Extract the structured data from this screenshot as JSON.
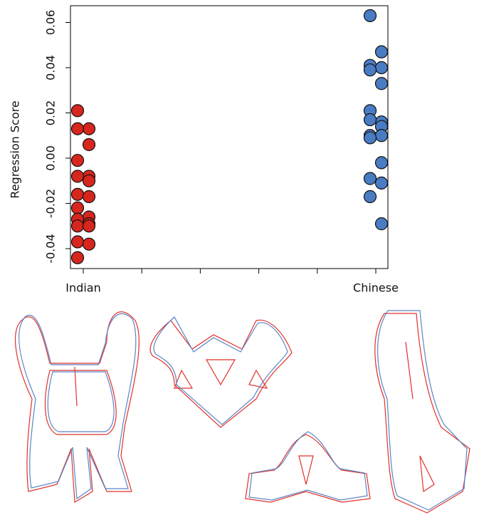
{
  "chart_data": {
    "type": "scatter",
    "y_label": "Regression Score",
    "categories": [
      "Indian",
      null,
      null,
      null,
      null,
      "Chinese"
    ],
    "series": [
      {
        "category": 0,
        "color": "#d7261e",
        "values": [
          0.021,
          0.013,
          0.013,
          0.006,
          -0.001,
          -0.008,
          -0.008,
          -0.01,
          -0.016,
          -0.017,
          -0.022,
          -0.026,
          -0.027,
          -0.029,
          -0.03,
          -0.03,
          -0.037,
          -0.038,
          -0.044
        ]
      },
      {
        "category": 5,
        "color": "#4a7cc4",
        "values": [
          0.063,
          0.047,
          0.041,
          0.04,
          0.039,
          0.033,
          0.021,
          0.016,
          0.017,
          0.014,
          0.01,
          0.01,
          0.009,
          -0.002,
          -0.009,
          -0.011,
          -0.017,
          -0.029
        ]
      }
    ],
    "ylim": [
      -0.0488,
      0.0674
    ],
    "yticks": [
      -0.04,
      -0.02,
      {
        "value": 0,
        "label": "0.00"
      },
      0.02,
      0.04,
      0.06
    ]
  }
}
